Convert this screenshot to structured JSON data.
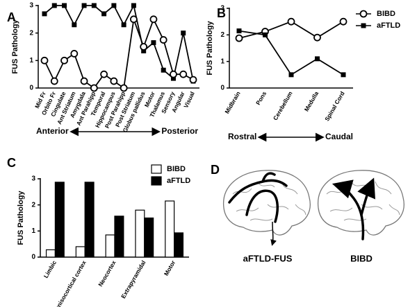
{
  "chart_data": [
    {
      "type": "line",
      "panel_label": "A",
      "y_label": "FUS Pathology",
      "categories": [
        "Mid Fr",
        "Orbito Fr",
        "Cingulate",
        "Ant Striatum",
        "Amygdala",
        "Ant Parahipp",
        "Temporal",
        "Hippocampus",
        "Post Parahipp",
        "Post Striatum",
        "Globus pallidus",
        "Motor",
        "Thalamus",
        "Sensory",
        "Angular",
        "Visual"
      ],
      "series": [
        {
          "marker": "square",
          "color": "#000000",
          "values": [
            2.7,
            3,
            3,
            2.3,
            3,
            3,
            2.7,
            3,
            2.3,
            3,
            1.35,
            1.65,
            0.65,
            0.35,
            2.0,
            0.25
          ]
        },
        {
          "marker": "circle",
          "color": "#000000",
          "values": [
            1.0,
            0.25,
            1.0,
            1.25,
            0.25,
            0,
            0.5,
            0.25,
            0,
            2.5,
            1.5,
            2.5,
            1.75,
            0.5,
            0.5,
            0.3
          ]
        }
      ],
      "ylim": [
        0,
        3
      ],
      "yticks": [
        0,
        1,
        2,
        3
      ],
      "annotations": [
        "Anterior",
        "Posterior"
      ]
    },
    {
      "type": "line",
      "panel_label": "B",
      "y_label": "FUS Pathology",
      "categories": [
        "Midbrain",
        "Pons",
        "Cerebellum",
        "Medulla",
        "Spinal Cord"
      ],
      "series": [
        {
          "name": "BIBD",
          "marker": "circle",
          "color": "#000000",
          "values": [
            1.875,
            2.125,
            2.5,
            1.9,
            2.5
          ]
        },
        {
          "name": "aFTLD",
          "marker": "square",
          "color": "#000000",
          "values": [
            2.15,
            2.0,
            0.5,
            1.1,
            0.5
          ]
        }
      ],
      "ylim": [
        0,
        3
      ],
      "yticks": [
        0,
        1,
        2,
        3
      ],
      "annotations": [
        "Rostral",
        "Caudal"
      ]
    },
    {
      "type": "bar",
      "panel_label": "C",
      "y_label": "FUS Pathology",
      "categories": [
        "Limbic",
        "Nonisocortical cortex",
        "Neocortex",
        "Extrapyramidal",
        "Motor"
      ],
      "series": [
        {
          "name": "BIBD",
          "color": "#ffffff",
          "values": [
            0.28,
            0.4,
            0.85,
            1.8,
            2.15
          ]
        },
        {
          "name": "aFTLD",
          "color": "#000000",
          "values": [
            2.87,
            2.87,
            1.57,
            1.5,
            0.93
          ]
        }
      ],
      "ylim": [
        0,
        3
      ],
      "yticks": [
        0,
        1,
        2,
        3
      ]
    }
  ],
  "diagram": {
    "panel_label": "D",
    "captions": [
      "aFTLD-FUS",
      "BIBD"
    ]
  }
}
